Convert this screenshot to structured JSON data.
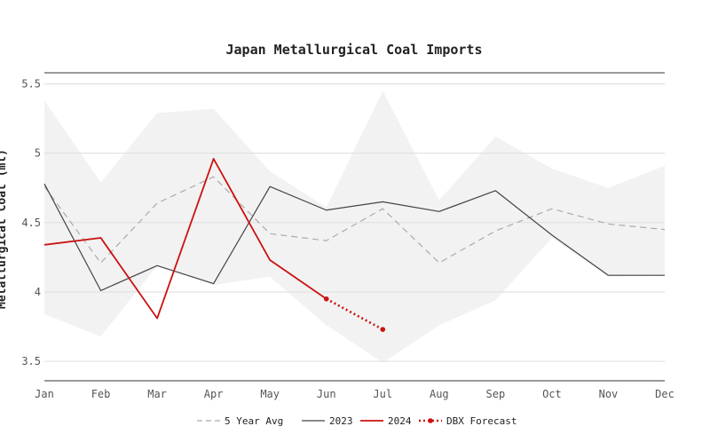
{
  "chart_data": {
    "type": "line",
    "title": "Japan Metallurgical Coal Imports",
    "ylabel": "Metallurgical Coal (mt)",
    "xlabel": "",
    "categories": [
      "Jan",
      "Feb",
      "Mar",
      "Apr",
      "May",
      "Jun",
      "Jul",
      "Aug",
      "Sep",
      "Oct",
      "Nov",
      "Dec"
    ],
    "ylim": [
      3.36,
      5.58
    ],
    "yticks": [
      3.5,
      4,
      4.5,
      5,
      5.5
    ],
    "ytick_labels": [
      "3.5",
      "4",
      "4.5",
      "5",
      "5.5"
    ],
    "grid": true,
    "legend_position": "bottom",
    "range_band": {
      "upper": [
        5.38,
        4.79,
        5.29,
        5.32,
        4.87,
        4.61,
        5.45,
        4.66,
        5.12,
        4.89,
        4.75,
        4.91
      ],
      "lower": [
        3.84,
        3.68,
        4.19,
        4.05,
        4.11,
        3.76,
        3.49,
        3.76,
        3.94,
        4.39,
        4.11,
        4.12
      ],
      "color": "#f2f2f2"
    },
    "series": [
      {
        "name": "5 Year Avg",
        "style": "dashed",
        "color": "#aaaaaa",
        "values": [
          4.76,
          4.21,
          4.64,
          4.83,
          4.42,
          4.37,
          4.6,
          4.21,
          4.44,
          4.6,
          4.49,
          4.45
        ]
      },
      {
        "name": "2023",
        "style": "solid",
        "color": "#444444",
        "values": [
          4.78,
          4.01,
          4.19,
          4.06,
          4.76,
          4.59,
          4.65,
          4.58,
          4.73,
          4.41,
          4.12,
          4.12
        ]
      },
      {
        "name": "2024",
        "style": "solid",
        "color": "#cc1111",
        "values": [
          4.34,
          4.39,
          3.81,
          4.96,
          4.23,
          3.95,
          null,
          null,
          null,
          null,
          null,
          null
        ]
      },
      {
        "name": "DBX Forecast",
        "style": "dotted",
        "color": "#cc1111",
        "values": [
          null,
          null,
          null,
          null,
          null,
          3.95,
          3.73,
          null,
          null,
          null,
          null,
          null
        ]
      }
    ]
  }
}
